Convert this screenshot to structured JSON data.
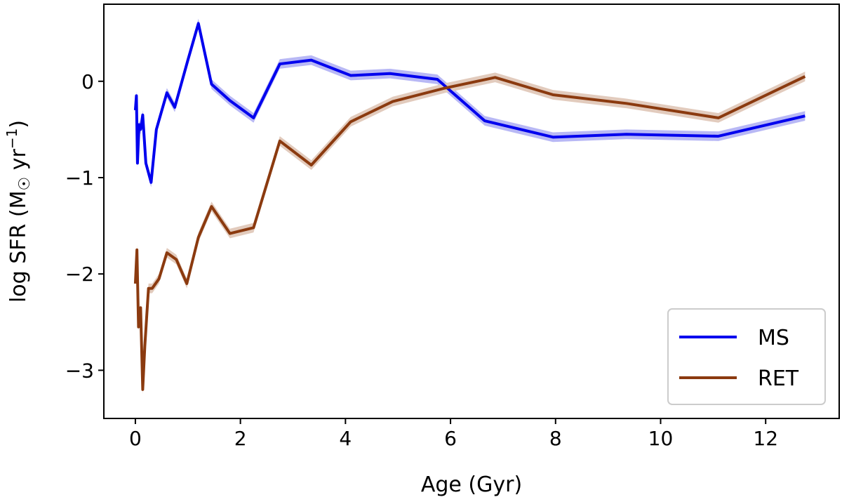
{
  "chart_data": {
    "type": "line",
    "title": "",
    "xlabel": "Age (Gyr)",
    "ylabel_main": "log SFR (M",
    "ylabel_sun": "☉",
    "ylabel_unit": " yr",
    "ylabel_exp": "−1",
    "ylabel_close": ")",
    "xlim": [
      -0.6,
      13.4
    ],
    "ylim": [
      -3.5,
      0.8
    ],
    "xticks": [
      0,
      2,
      4,
      6,
      8,
      10,
      12
    ],
    "xtick_labels": [
      "0",
      "2",
      "4",
      "6",
      "8",
      "10",
      "12"
    ],
    "yticks": [
      -3,
      -2,
      -1,
      0
    ],
    "ytick_labels": [
      "−3",
      "−2",
      "−1",
      "0"
    ],
    "grid": false,
    "legend_position": "lower-right",
    "series": [
      {
        "name": "MS",
        "color": "#0000ee",
        "band_color": "#b8b8f5",
        "band_halfwidth": 0.05,
        "x": [
          0.0,
          0.02,
          0.04,
          0.07,
          0.1,
          0.14,
          0.2,
          0.3,
          0.4,
          0.6,
          0.75,
          1.0,
          1.2,
          1.45,
          1.8,
          2.25,
          2.75,
          3.35,
          4.1,
          4.85,
          5.75,
          6.65,
          7.95,
          9.35,
          11.1,
          12.75
        ],
        "y": [
          -0.3,
          -0.15,
          -0.85,
          -0.45,
          -0.5,
          -0.35,
          -0.85,
          -1.05,
          -0.5,
          -0.12,
          -0.27,
          0.22,
          0.6,
          -0.03,
          -0.2,
          -0.38,
          0.18,
          0.22,
          0.06,
          0.08,
          0.02,
          -0.41,
          -0.58,
          -0.55,
          -0.57,
          -0.36
        ]
      },
      {
        "name": "RET",
        "color": "#8b3a0f",
        "band_color": "#e2cbbd",
        "band_halfwidth": 0.05,
        "x": [
          0.0,
          0.03,
          0.06,
          0.1,
          0.14,
          0.18,
          0.25,
          0.32,
          0.45,
          0.6,
          0.78,
          0.98,
          1.2,
          1.45,
          1.8,
          2.25,
          2.75,
          3.35,
          4.1,
          4.9,
          5.9,
          6.85,
          7.95,
          9.35,
          11.1,
          12.75
        ],
        "y": [
          -2.1,
          -1.75,
          -2.55,
          -2.35,
          -3.2,
          -2.75,
          -2.15,
          -2.15,
          -2.05,
          -1.78,
          -1.85,
          -2.1,
          -1.62,
          -1.3,
          -1.58,
          -1.52,
          -0.62,
          -0.87,
          -0.42,
          -0.21,
          -0.07,
          0.04,
          -0.14,
          -0.23,
          -0.38,
          0.05
        ]
      }
    ]
  }
}
